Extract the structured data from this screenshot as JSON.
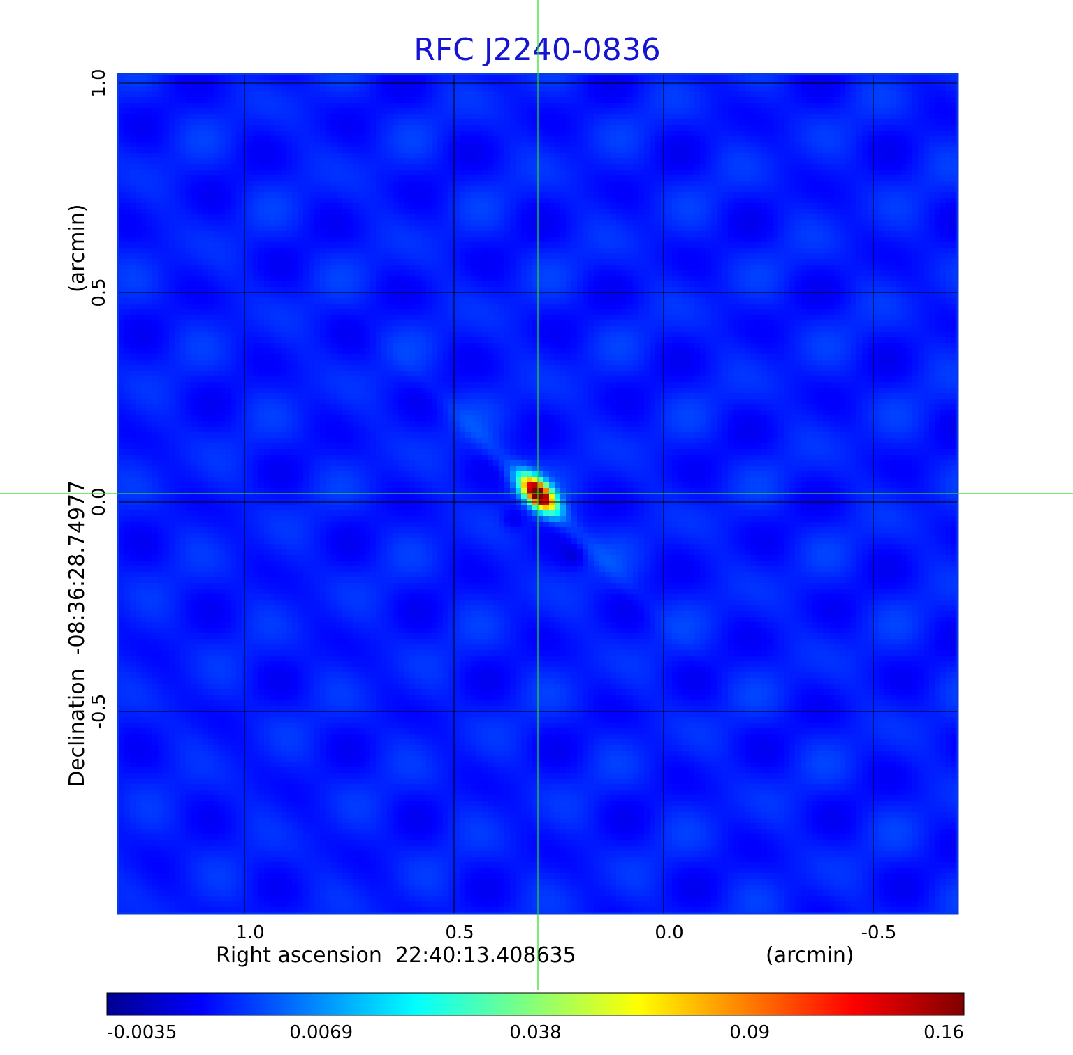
{
  "chart_data": {
    "type": "heatmap",
    "title": "RFC J2240-0836",
    "xlabel": "Right ascension  22:40:13.408635",
    "xunit": "(arcmin)",
    "ylabel": "Declination  -08:36:28.74977",
    "yunit": "(arcmin)",
    "xlim": [
      1.3,
      -0.7
    ],
    "ylim": [
      -0.98,
      1.02
    ],
    "x_ticks": [
      1.0,
      0.5,
      0.0,
      -0.5
    ],
    "x_tick_labels": [
      "1.0",
      "0.5",
      "0.0",
      "-0.5"
    ],
    "y_ticks": [
      1.0,
      0.5,
      0.0,
      -0.5
    ],
    "y_tick_labels": [
      "1.0",
      "0.5",
      "0.0",
      "-0.5"
    ],
    "grid": true,
    "crosshair": {
      "x": 0.3,
      "y": 0.02,
      "color": "#22e022"
    },
    "peak": {
      "x": 0.3,
      "y": 0.02,
      "value": 0.16
    },
    "colormap": "jet",
    "colorbar": {
      "placement": "bottom",
      "tick_labels": [
        "-0.0035",
        "0.0069",
        "0.038",
        "0.09",
        "0.16"
      ]
    }
  }
}
